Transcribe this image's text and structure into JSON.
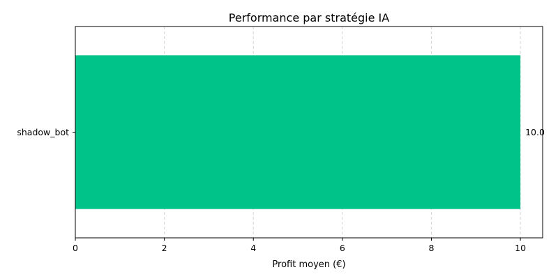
{
  "chart_data": {
    "type": "bar",
    "orientation": "horizontal",
    "title": "Performance par stratégie IA",
    "xlabel": "Profit moyen (€)",
    "ylabel": "",
    "categories": [
      "shadow_bot"
    ],
    "values": [
      10.0
    ],
    "value_labels": [
      "10.0"
    ],
    "xlim": [
      0,
      10.5
    ],
    "xticks": [
      0,
      2,
      4,
      6,
      8,
      10
    ],
    "grid": "x-dashed",
    "legend": "none",
    "colors": {
      "bar": "#00c38a",
      "grid": "#d6d6d6",
      "axis": "#000000"
    }
  }
}
